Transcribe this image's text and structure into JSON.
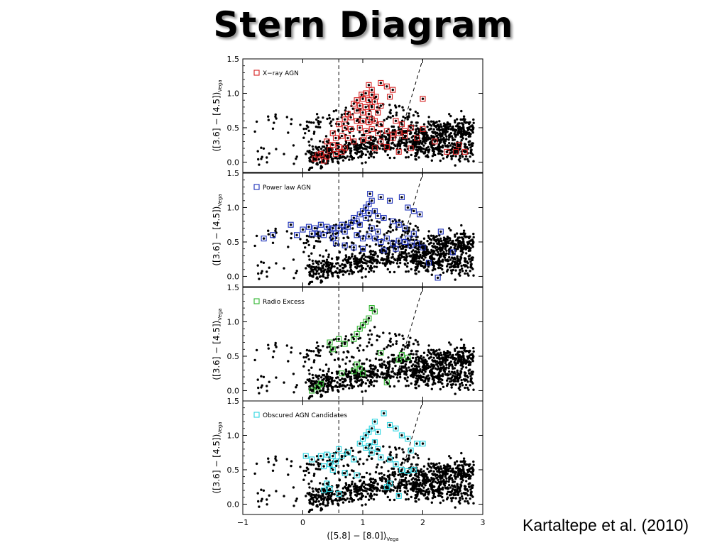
{
  "slide": {
    "title": "Stern Diagram",
    "citation": "Kartaltepe et al. (2010)"
  },
  "chart_data": {
    "type": "scatter",
    "xlabel_main": "([5.8] − [8.0])",
    "xlabel_sub": "Vega",
    "ylabel_main": "([3.6] − [4.5])",
    "ylabel_sub": "Vega",
    "xlim": [
      -1,
      3
    ],
    "ylim": [
      -0.15,
      1.5
    ],
    "xticks": [
      -1,
      0,
      1,
      2,
      3
    ],
    "xtick_labels": [
      "−1",
      "0",
      "1",
      "2",
      "3"
    ],
    "yticks": [
      0.0,
      0.5,
      1.0,
      1.5
    ],
    "ytick_labels": [
      "0.0",
      "0.5",
      "1.0",
      "1.5"
    ],
    "dashed_wedge": {
      "vertical_x": 0.6,
      "diagonal": [
        [
          1.6,
          0.32
        ],
        [
          2.0,
          1.5
        ]
      ]
    },
    "panels": [
      {
        "legend": "X−ray AGN",
        "color": "#d62020",
        "highlighted": [
          [
            1.1,
            1.12
          ],
          [
            1.3,
            1.15
          ],
          [
            1.4,
            1.1
          ],
          [
            1.5,
            1.05
          ],
          [
            1.05,
            1.0
          ],
          [
            0.98,
            0.98
          ],
          [
            1.15,
            0.98
          ],
          [
            1.22,
            0.95
          ],
          [
            0.9,
            0.9
          ],
          [
            1.0,
            0.92
          ],
          [
            1.1,
            0.9
          ],
          [
            1.2,
            0.88
          ],
          [
            1.3,
            0.82
          ],
          [
            2.0,
            0.92
          ],
          [
            0.85,
            0.85
          ],
          [
            0.95,
            0.82
          ],
          [
            1.05,
            0.8
          ],
          [
            1.15,
            0.8
          ],
          [
            0.9,
            0.75
          ],
          [
            1.0,
            0.72
          ],
          [
            1.1,
            0.7
          ],
          [
            0.75,
            0.7
          ],
          [
            0.8,
            0.65
          ],
          [
            0.9,
            0.6
          ],
          [
            1.0,
            0.6
          ],
          [
            1.1,
            0.58
          ],
          [
            1.2,
            0.6
          ],
          [
            1.3,
            0.55
          ],
          [
            0.6,
            0.55
          ],
          [
            0.7,
            0.5
          ],
          [
            0.8,
            0.48
          ],
          [
            0.95,
            0.5
          ],
          [
            1.05,
            0.45
          ],
          [
            1.15,
            0.48
          ],
          [
            1.25,
            0.42
          ],
          [
            1.4,
            0.45
          ],
          [
            1.5,
            0.4
          ],
          [
            1.6,
            0.42
          ],
          [
            1.7,
            0.45
          ],
          [
            1.8,
            0.5
          ],
          [
            2.0,
            0.48
          ],
          [
            0.5,
            0.42
          ],
          [
            0.65,
            0.38
          ],
          [
            0.75,
            0.35
          ],
          [
            0.85,
            0.3
          ],
          [
            1.0,
            0.32
          ],
          [
            1.1,
            0.35
          ],
          [
            1.3,
            0.3
          ],
          [
            1.5,
            0.35
          ],
          [
            1.7,
            0.38
          ],
          [
            1.9,
            0.35
          ],
          [
            2.2,
            0.3
          ],
          [
            0.4,
            0.3
          ],
          [
            0.5,
            0.25
          ],
          [
            0.6,
            0.22
          ],
          [
            0.7,
            0.2
          ],
          [
            0.45,
            0.18
          ],
          [
            0.3,
            0.12
          ],
          [
            0.4,
            0.08
          ],
          [
            0.55,
            0.12
          ],
          [
            0.65,
            0.15
          ],
          [
            0.2,
            0.05
          ],
          [
            0.35,
            0.02
          ],
          [
            1.2,
            0.2
          ],
          [
            1.4,
            0.22
          ],
          [
            1.6,
            0.15
          ],
          [
            1.8,
            0.2
          ],
          [
            2.4,
            0.15
          ],
          [
            2.55,
            0.15
          ],
          [
            2.7,
            0.15
          ],
          [
            2.6,
            0.25
          ],
          [
            1.15,
            1.05
          ],
          [
            1.45,
            0.95
          ],
          [
            1.25,
            0.72
          ],
          [
            0.7,
            0.62
          ],
          [
            1.55,
            0.6
          ],
          [
            1.65,
            0.55
          ],
          [
            0.55,
            0.35
          ],
          [
            0.25,
            0.1
          ],
          [
            1.15,
            0.62
          ]
        ]
      },
      {
        "legend": "Power law AGN",
        "color": "#1a2eb8",
        "highlighted": [
          [
            -0.65,
            0.55
          ],
          [
            -0.5,
            0.6
          ],
          [
            -0.2,
            0.75
          ],
          [
            -0.1,
            0.6
          ],
          [
            0.0,
            0.68
          ],
          [
            0.1,
            0.72
          ],
          [
            0.2,
            0.7
          ],
          [
            0.25,
            0.62
          ],
          [
            0.3,
            0.75
          ],
          [
            0.4,
            0.72
          ],
          [
            0.45,
            0.68
          ],
          [
            0.5,
            0.7
          ],
          [
            0.55,
            0.62
          ],
          [
            0.6,
            0.7
          ],
          [
            0.65,
            0.75
          ],
          [
            0.7,
            0.65
          ],
          [
            0.75,
            0.72
          ],
          [
            0.8,
            0.78
          ],
          [
            0.85,
            0.85
          ],
          [
            0.9,
            0.8
          ],
          [
            0.95,
            0.9
          ],
          [
            1.0,
            0.95
          ],
          [
            1.05,
            1.0
          ],
          [
            1.1,
            1.05
          ],
          [
            1.15,
            1.1
          ],
          [
            1.12,
            1.2
          ],
          [
            1.3,
            1.15
          ],
          [
            1.45,
            1.1
          ],
          [
            1.65,
            1.15
          ],
          [
            1.75,
            1.0
          ],
          [
            1.85,
            0.95
          ],
          [
            1.95,
            0.9
          ],
          [
            1.2,
            0.95
          ],
          [
            1.25,
            0.88
          ],
          [
            1.35,
            0.85
          ],
          [
            1.5,
            0.8
          ],
          [
            1.6,
            0.75
          ],
          [
            1.7,
            0.7
          ],
          [
            2.3,
            0.65
          ],
          [
            0.9,
            0.6
          ],
          [
            1.0,
            0.55
          ],
          [
            1.1,
            0.58
          ],
          [
            1.2,
            0.55
          ],
          [
            1.3,
            0.5
          ],
          [
            1.4,
            0.55
          ],
          [
            1.5,
            0.48
          ],
          [
            1.6,
            0.52
          ],
          [
            1.7,
            0.5
          ],
          [
            1.8,
            0.45
          ],
          [
            1.9,
            0.48
          ],
          [
            2.0,
            0.42
          ],
          [
            0.55,
            0.48
          ],
          [
            0.7,
            0.45
          ],
          [
            0.85,
            0.42
          ],
          [
            1.0,
            0.4
          ],
          [
            1.35,
            0.38
          ],
          [
            1.55,
            0.4
          ],
          [
            2.5,
            0.35
          ],
          [
            2.1,
            0.2
          ],
          [
            2.25,
            -0.02
          ],
          [
            1.05,
            0.85
          ],
          [
            0.95,
            0.75
          ],
          [
            1.15,
            0.7
          ],
          [
            0.35,
            0.6
          ],
          [
            0.15,
            0.62
          ],
          [
            1.25,
            0.65
          ],
          [
            1.85,
            0.62
          ],
          [
            1.75,
            0.55
          ],
          [
            0.5,
            0.55
          ],
          [
            1.1,
            0.92
          ]
        ]
      },
      {
        "legend": "Radio Excess",
        "color": "#2fb52f",
        "highlighted": [
          [
            1.15,
            1.2
          ],
          [
            1.2,
            1.15
          ],
          [
            1.1,
            1.05
          ],
          [
            1.05,
            1.0
          ],
          [
            1.0,
            0.95
          ],
          [
            0.95,
            0.9
          ],
          [
            0.9,
            0.82
          ],
          [
            0.6,
            0.75
          ],
          [
            0.7,
            0.68
          ],
          [
            0.45,
            0.7
          ],
          [
            0.5,
            0.6
          ],
          [
            0.85,
            0.75
          ],
          [
            1.3,
            0.55
          ],
          [
            1.65,
            0.52
          ],
          [
            1.75,
            0.48
          ],
          [
            1.6,
            0.45
          ],
          [
            0.9,
            0.38
          ],
          [
            0.95,
            0.32
          ],
          [
            0.85,
            0.28
          ],
          [
            0.65,
            0.25
          ],
          [
            1.0,
            0.25
          ],
          [
            0.3,
            0.1
          ],
          [
            0.25,
            0.05
          ],
          [
            0.15,
            0.0
          ],
          [
            1.4,
            0.12
          ]
        ]
      },
      {
        "legend": "Obscured AGN Candidates",
        "color": "#2ad4e0",
        "highlighted": [
          [
            1.35,
            1.32
          ],
          [
            1.2,
            1.2
          ],
          [
            1.15,
            1.1
          ],
          [
            1.1,
            1.05
          ],
          [
            1.05,
            1.0
          ],
          [
            1.25,
            1.05
          ],
          [
            1.45,
            1.15
          ],
          [
            1.55,
            1.1
          ],
          [
            1.65,
            1.0
          ],
          [
            1.75,
            0.95
          ],
          [
            1.0,
            0.95
          ],
          [
            0.95,
            0.88
          ],
          [
            1.1,
            0.85
          ],
          [
            1.2,
            0.9
          ],
          [
            1.9,
            0.88
          ],
          [
            2.0,
            0.88
          ],
          [
            0.05,
            0.7
          ],
          [
            0.15,
            0.65
          ],
          [
            0.3,
            0.7
          ],
          [
            0.4,
            0.72
          ],
          [
            0.5,
            0.7
          ],
          [
            0.55,
            0.62
          ],
          [
            0.65,
            0.7
          ],
          [
            0.75,
            0.75
          ],
          [
            0.45,
            0.58
          ],
          [
            0.5,
            0.5
          ],
          [
            0.35,
            0.55
          ],
          [
            0.85,
            0.65
          ],
          [
            1.3,
            0.68
          ],
          [
            1.45,
            0.65
          ],
          [
            1.55,
            0.58
          ],
          [
            1.65,
            0.5
          ],
          [
            1.75,
            0.48
          ],
          [
            1.85,
            0.5
          ],
          [
            0.7,
            0.45
          ],
          [
            0.9,
            0.42
          ],
          [
            0.4,
            0.3
          ],
          [
            0.45,
            0.22
          ],
          [
            0.35,
            0.2
          ],
          [
            0.6,
            0.15
          ],
          [
            1.45,
            0.3
          ],
          [
            1.4,
            0.25
          ],
          [
            1.6,
            0.12
          ],
          [
            1.8,
            0.78
          ],
          [
            1.25,
            0.8
          ],
          [
            1.15,
            0.75
          ],
          [
            0.6,
            0.8
          ],
          [
            1.05,
            0.82
          ]
        ]
      }
    ]
  }
}
